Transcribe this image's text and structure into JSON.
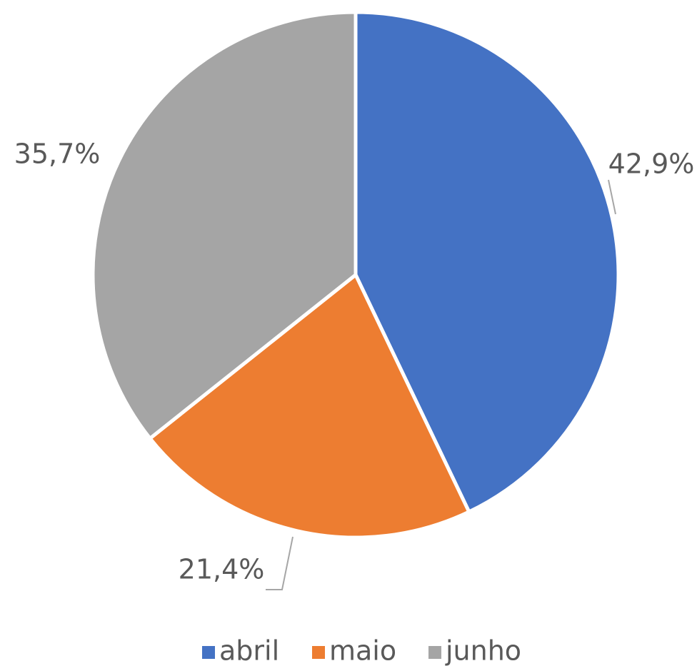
{
  "chart_data": {
    "type": "pie",
    "categories": [
      "abril",
      "maio",
      "junho"
    ],
    "values": [
      42.9,
      21.4,
      35.7
    ],
    "value_labels": [
      "42,9%",
      "21,4%",
      "35,7%"
    ],
    "colors": [
      "#4472c4",
      "#ed7d31",
      "#a5a5a5"
    ],
    "legend": "bottom"
  }
}
